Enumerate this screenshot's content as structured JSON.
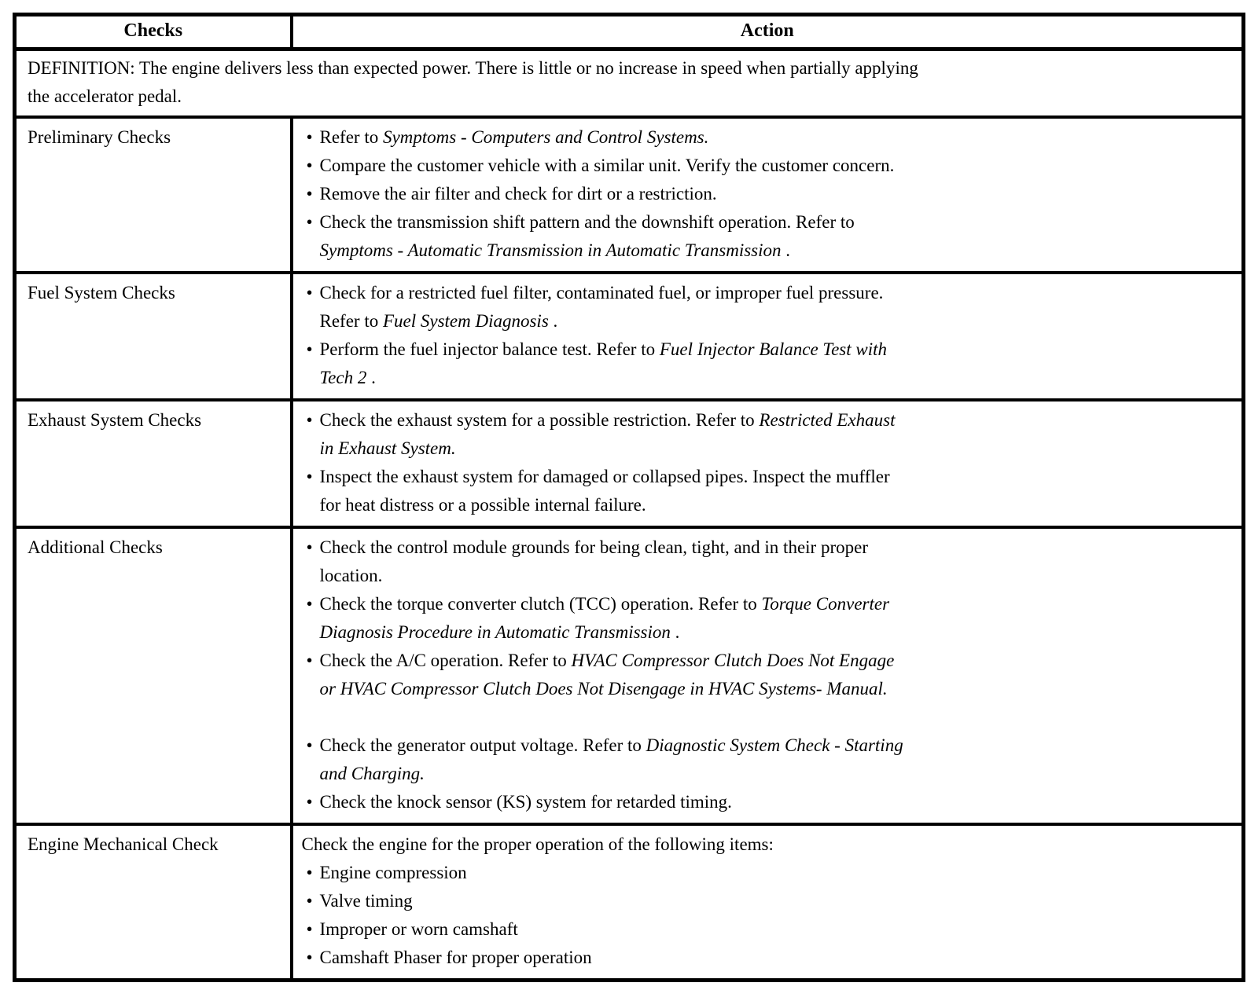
{
  "page": {
    "background": "#ffffff",
    "text_color": "#000000",
    "border_color": "#000000"
  },
  "table": {
    "headers": {
      "checks": "Checks",
      "action": "Action"
    },
    "definition_lines": [
      "DEFINITION: The engine delivers less than expected power. There is little or no increase in speed when partially applying",
      "the accelerator pedal."
    ],
    "rows": [
      {
        "check": "Preliminary Checks",
        "items": [
          {
            "parts": [
              {
                "t": "Refer to ",
                "i": false
              },
              {
                "t": "Symptoms - Computers and Control Systems.",
                "i": true
              }
            ]
          },
          {
            "parts": [
              {
                "t": "Compare the customer vehicle with a similar unit. Verify the customer concern.",
                "i": false
              }
            ]
          },
          {
            "parts": [
              {
                "t": "Remove the air filter and check for dirt or a restriction.",
                "i": false
              }
            ]
          },
          {
            "parts": [
              {
                "t": "Check the transmission shift pattern and the downshift operation. Refer to",
                "i": false
              },
              {
                "br": true
              },
              {
                "t": "Symptoms - Automatic Transmission  in Automatic Transmission",
                "i": true
              },
              {
                "t": " .",
                "i": false
              }
            ]
          }
        ]
      },
      {
        "check": "Fuel System Checks",
        "items": [
          {
            "parts": [
              {
                "t": "Check for a restricted fuel filter, contaminated fuel, or improper fuel pressure.",
                "i": false
              },
              {
                "br": true
              },
              {
                "t": "Refer to ",
                "i": false
              },
              {
                "t": "Fuel System Diagnosis",
                "i": true
              },
              {
                "t": " .",
                "i": false
              }
            ]
          },
          {
            "parts": [
              {
                "t": "Perform the fuel injector balance test. Refer to ",
                "i": false
              },
              {
                "t": "Fuel Injector Balance Test with",
                "i": true
              },
              {
                "br": true
              },
              {
                "t": "Tech 2",
                "i": true
              },
              {
                "t": " .",
                "i": false
              }
            ]
          }
        ]
      },
      {
        "check": "Exhaust System Checks",
        "items": [
          {
            "parts": [
              {
                "t": "Check the exhaust system for a possible restriction. Refer to ",
                "i": false
              },
              {
                "t": "Restricted Exhaust",
                "i": true
              },
              {
                "br": true
              },
              {
                "t": "in Exhaust System.",
                "i": true
              }
            ]
          },
          {
            "parts": [
              {
                "t": "Inspect the exhaust system for damaged or collapsed pipes. Inspect the muffler",
                "i": false
              },
              {
                "br": true
              },
              {
                "t": "for heat distress or a possible internal failure.",
                "i": false
              }
            ]
          }
        ]
      },
      {
        "check": "Additional Checks",
        "items": [
          {
            "parts": [
              {
                "t": "Check the control module grounds for being clean, tight, and in their proper",
                "i": false
              },
              {
                "br": true
              },
              {
                "t": "location.",
                "i": false
              }
            ]
          },
          {
            "parts": [
              {
                "t": "Check the torque converter clutch (TCC) operation. Refer to ",
                "i": false
              },
              {
                "t": "Torque Converter",
                "i": true
              },
              {
                "br": true
              },
              {
                "t": "Diagnosis Procedure in Automatic Transmission",
                "i": true
              },
              {
                "t": " .",
                "i": false
              }
            ]
          },
          {
            "parts": [
              {
                "t": "Check the A/C operation. Refer to ",
                "i": false
              },
              {
                "t": "HVAC Compressor Clutch Does Not Engage",
                "i": true
              },
              {
                "br": true
              },
              {
                "t": "or HVAC Compressor Clutch Does Not Disengage in HVAC Systems- Manual.",
                "i": true
              }
            ]
          },
          {
            "gap_before": true,
            "parts": [
              {
                "t": "Check the generator output voltage. Refer to ",
                "i": false
              },
              {
                "t": "Diagnostic System Check - Starting",
                "i": true
              },
              {
                "br": true
              },
              {
                "t": "and Charging.",
                "i": true
              }
            ]
          },
          {
            "parts": [
              {
                "t": "Check the knock sensor (KS) system for retarded timing.",
                "i": false
              }
            ]
          }
        ]
      },
      {
        "check": "Engine Mechanical Check",
        "intro": "Check the engine for the proper operation of the following items:",
        "items": [
          {
            "parts": [
              {
                "t": "Engine compression",
                "i": false
              }
            ]
          },
          {
            "parts": [
              {
                "t": "Valve timing",
                "i": false
              }
            ]
          },
          {
            "parts": [
              {
                "t": "Improper or worn camshaft",
                "i": false
              }
            ]
          },
          {
            "parts": [
              {
                "t": "Camshaft Phaser for proper operation",
                "i": false
              }
            ]
          }
        ]
      }
    ]
  }
}
